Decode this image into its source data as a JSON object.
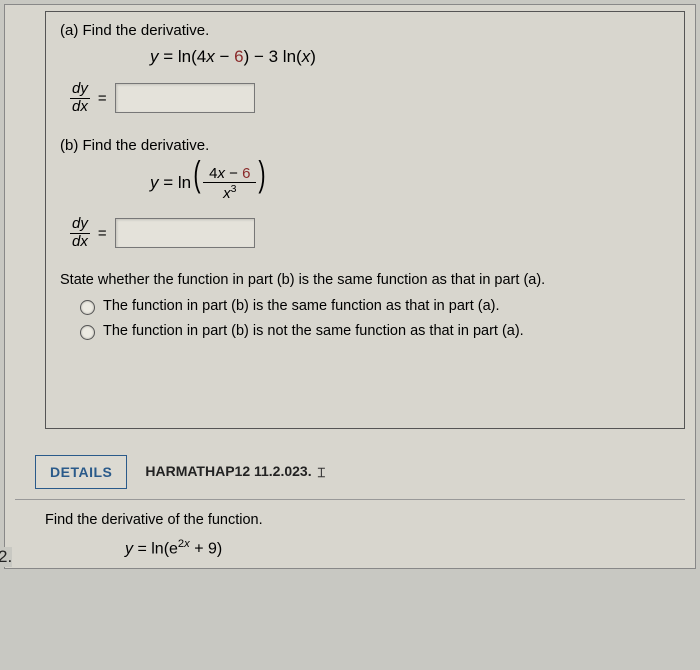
{
  "colors": {
    "page_bg": "#d8d6ce",
    "outer_bg": "#c8c8c2",
    "border": "#555",
    "details_border": "#2a5a8a",
    "accent_red": "#8a2a2a",
    "input_bg": "#e4e2da"
  },
  "problem1": {
    "partA": {
      "label": "(a) Find the derivative.",
      "equation_lhs": "y",
      "equation_rhs_pre": " = ln(4",
      "equation_rhs_x": "x",
      "equation_rhs_minus": " − ",
      "equation_rhs_six": "6",
      "equation_rhs_post": ") − 3 ln(",
      "equation_rhs_x2": "x",
      "equation_rhs_close": ")",
      "deriv_num": "dy",
      "deriv_den": "dx",
      "eq_sign": "="
    },
    "partB": {
      "label": "(b) Find the derivative.",
      "eq_y": "y",
      "eq_equals": " = ln",
      "frac_num_pre": "4",
      "frac_num_x": "x",
      "frac_num_minus": " − ",
      "frac_num_six": "6",
      "frac_den_x": "x",
      "frac_den_pow": "3",
      "deriv_num": "dy",
      "deriv_den": "dx",
      "eq_sign": "="
    },
    "statement": "State whether the function in part (b) is the same function as that in part (a).",
    "options": [
      "The function in part (b) is the same function as that in part (a).",
      "The function in part (b) is not the same function as that in part (a)."
    ]
  },
  "problem2": {
    "number": "2.",
    "details_label": "DETAILS",
    "book_ref": "HARMATHAP12 11.2.023.",
    "prompt": "Find the derivative of the function.",
    "eq_y": "y",
    "eq_equals": " = ln(e",
    "eq_exp": "2",
    "eq_expx": "x",
    "eq_post": " + 9)"
  }
}
